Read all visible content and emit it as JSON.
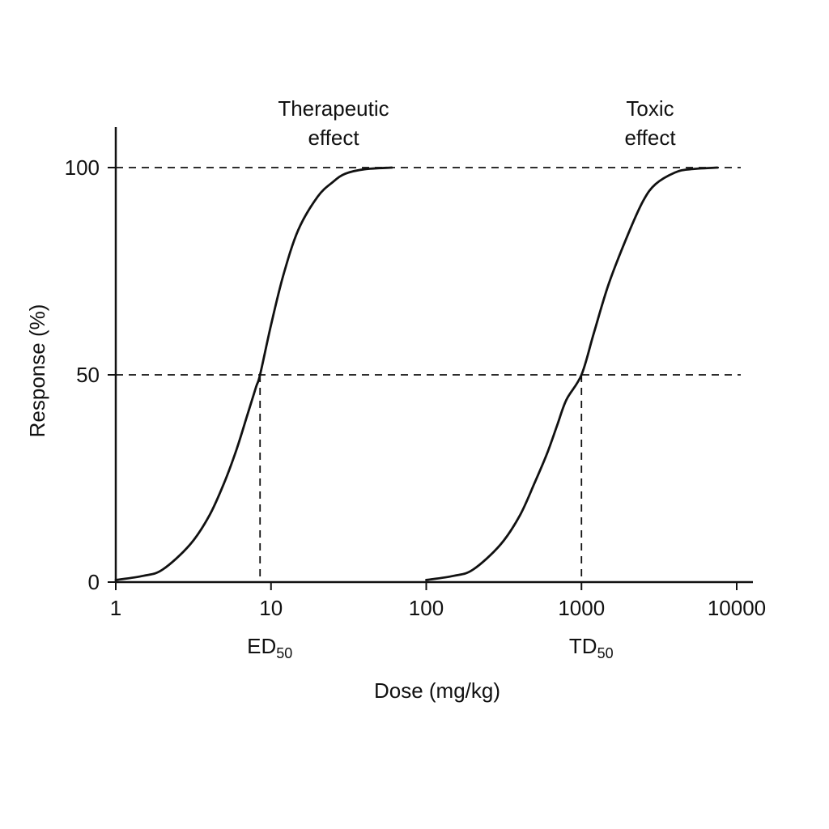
{
  "chart_data": {
    "type": "line",
    "xlabel": "Dose (mg/kg)",
    "ylabel": "Response (%)",
    "x_scale": "log",
    "xlim": [
      1,
      10000
    ],
    "ylim": [
      0,
      100
    ],
    "x_ticks": [
      {
        "value": 1,
        "label": "1"
      },
      {
        "value": 10,
        "label": "10"
      },
      {
        "value": 100,
        "label": "100"
      },
      {
        "value": 1000,
        "label": "1000"
      },
      {
        "value": 10000,
        "label": "10000"
      }
    ],
    "y_ticks": [
      {
        "value": 0,
        "label": "0"
      },
      {
        "value": 50,
        "label": "50"
      },
      {
        "value": 100,
        "label": "100"
      }
    ],
    "grid": false,
    "reference_lines": [
      {
        "axis": "y",
        "value": 100,
        "style": "dashed"
      },
      {
        "axis": "y",
        "value": 50,
        "style": "dashed"
      }
    ],
    "series": [
      {
        "label_lines": [
          "Therapeutic",
          "effect"
        ],
        "x": [
          1,
          1.5,
          2,
          3,
          4,
          5,
          6,
          7,
          8,
          8.5,
          10,
          12,
          15,
          20,
          25,
          30,
          40,
          60
        ],
        "y": [
          0.5,
          1.5,
          3,
          9,
          16,
          24,
          32,
          40,
          47,
          50,
          62,
          74,
          85,
          93,
          96.5,
          98.5,
          99.6,
          100
        ],
        "marker": {
          "x": 8.5,
          "y": 50,
          "label": "ED",
          "sub": "50"
        }
      },
      {
        "label_lines": [
          "Toxic",
          "effect"
        ],
        "x": [
          100,
          150,
          200,
          300,
          400,
          500,
          600,
          700,
          800,
          1000,
          1200,
          1500,
          2000,
          2500,
          3000,
          4000,
          5000,
          7500
        ],
        "y": [
          0.5,
          1.5,
          3,
          9,
          16,
          24,
          31,
          38,
          44,
          50,
          60,
          72,
          84,
          92,
          96,
          98.8,
          99.6,
          100
        ],
        "marker": {
          "x": 1000,
          "y": 50,
          "label": "TD",
          "sub": "50"
        }
      }
    ]
  }
}
